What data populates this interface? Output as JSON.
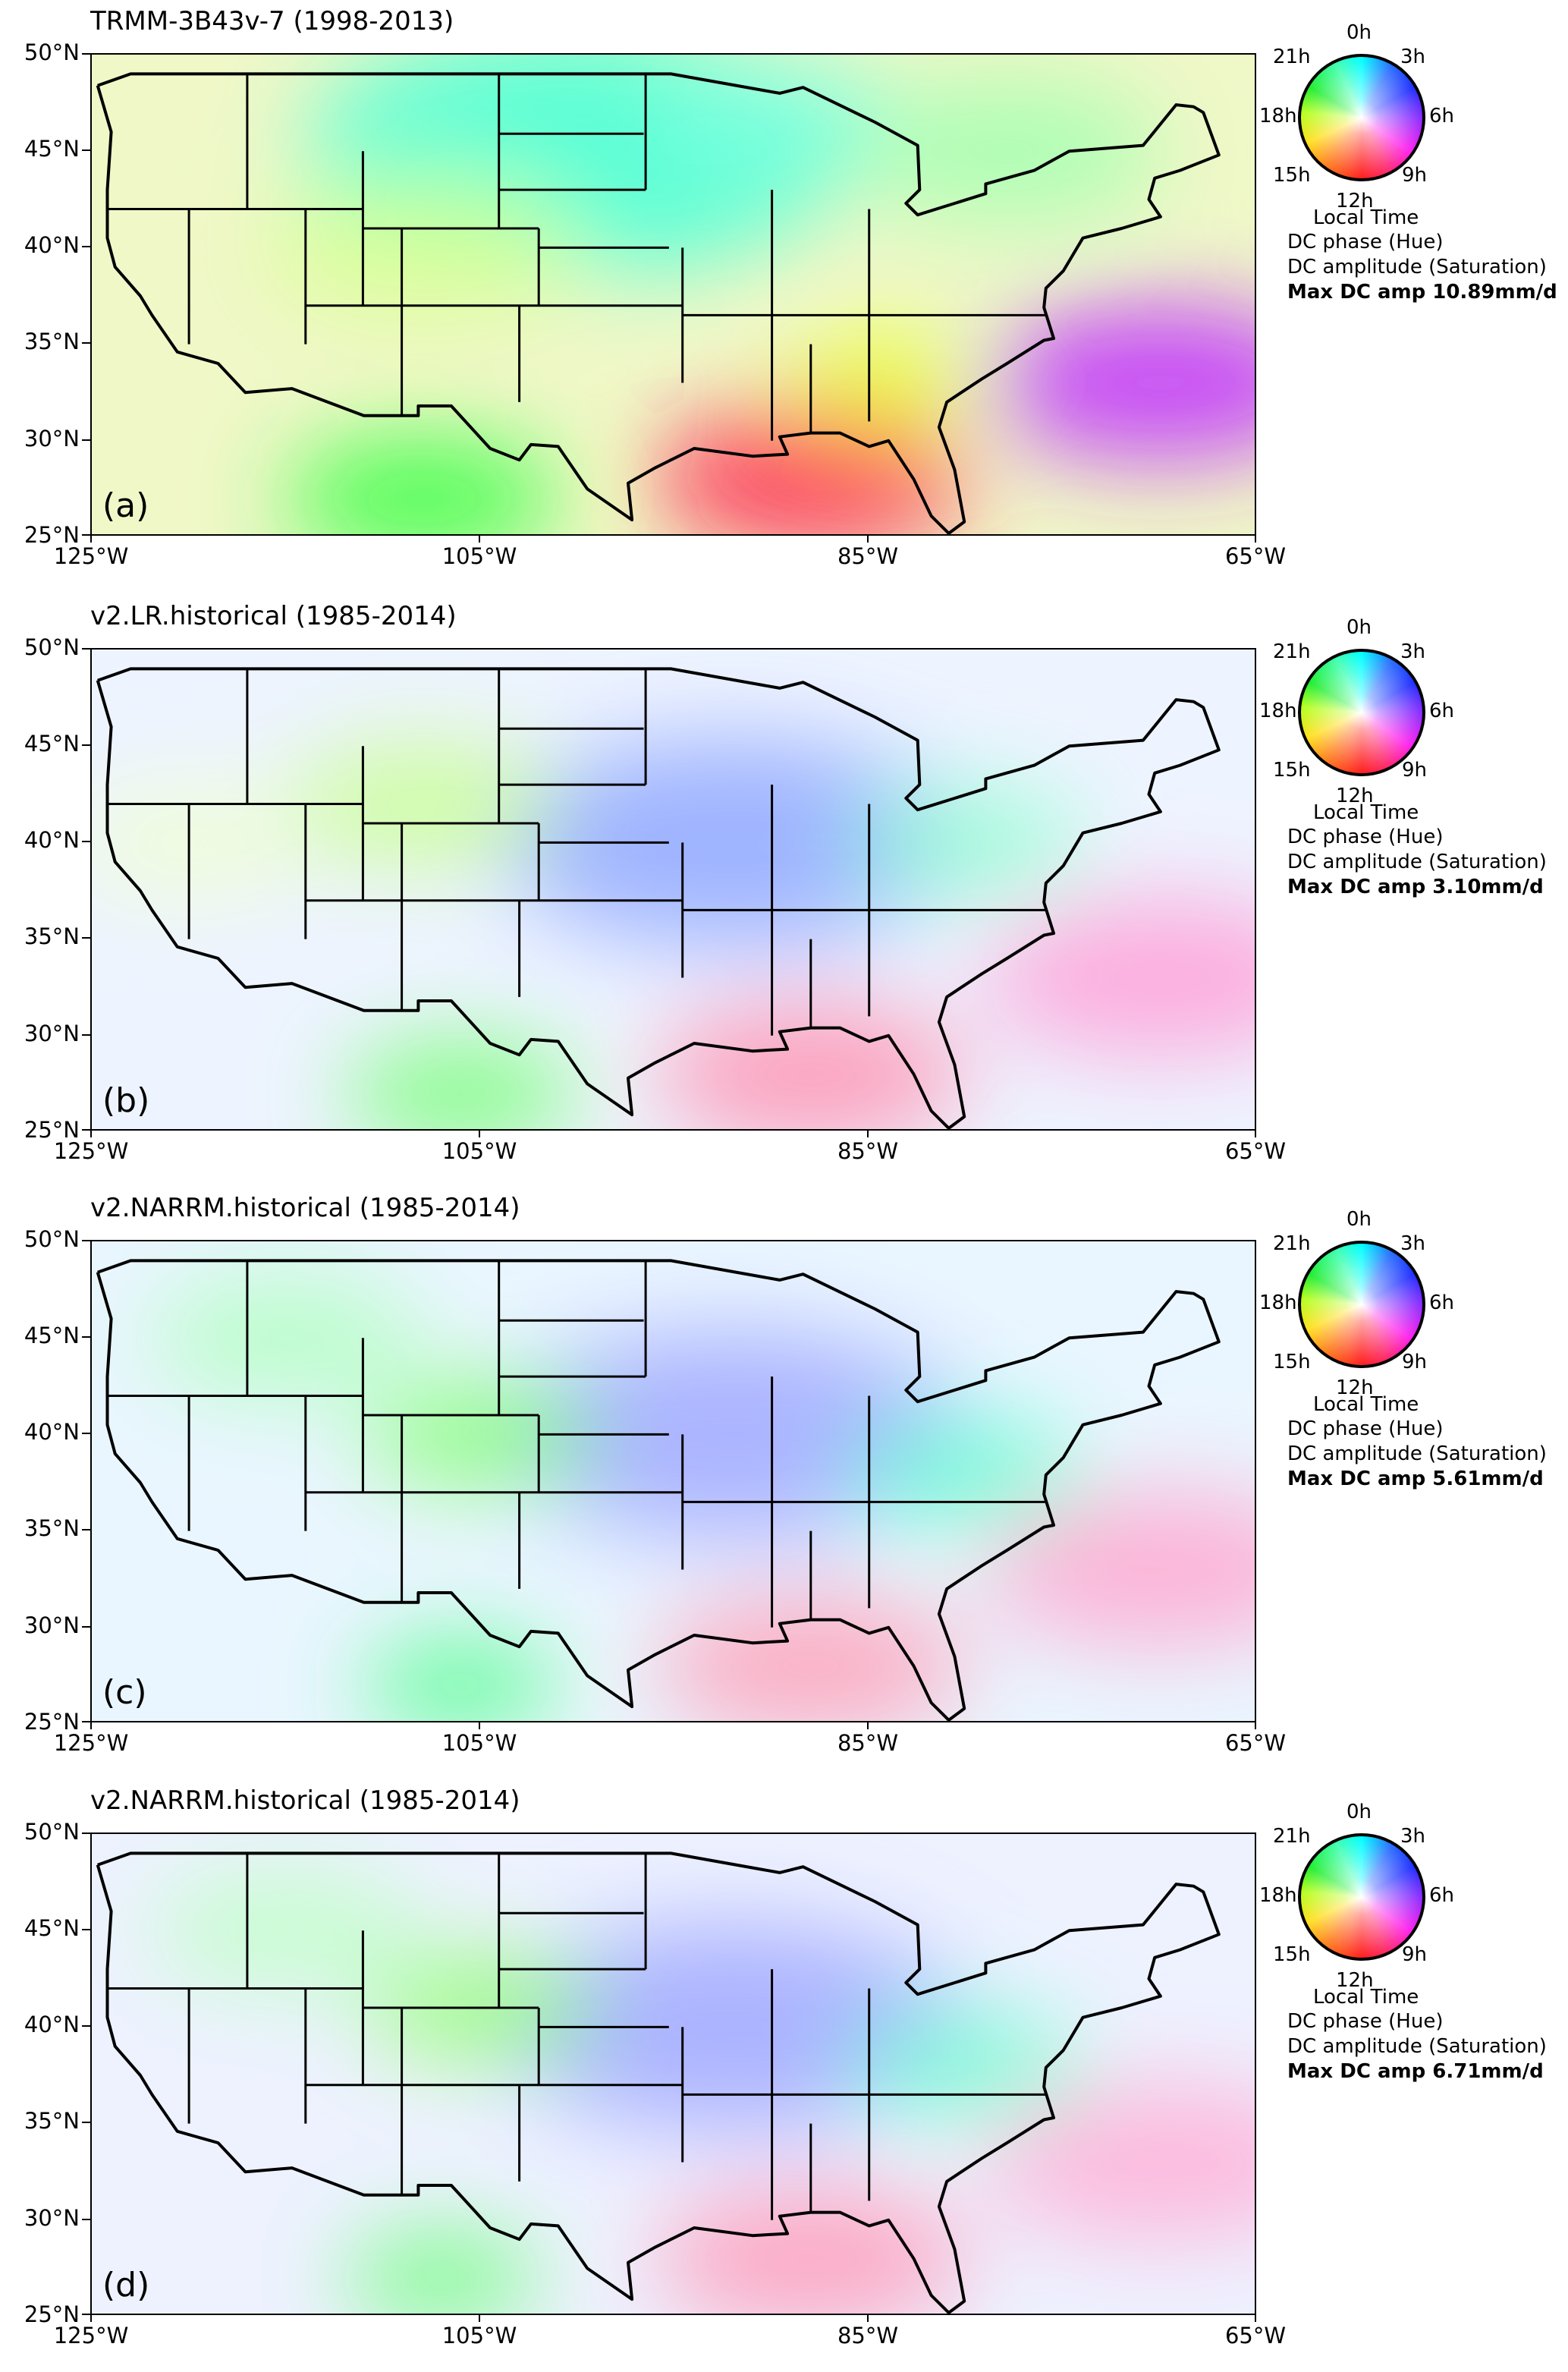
{
  "panels": [
    {
      "title": "TRMM-3B43v-7 (1998-2013)",
      "label": "(a)",
      "max_amp": "Max DC amp 10.89mm/d"
    },
    {
      "title": "v2.LR.historical (1985-2014)",
      "label": "(b)",
      "max_amp": "Max DC amp 3.10mm/d"
    },
    {
      "title": "v2.NARRM.historical (1985-2014)",
      "label": "(c)",
      "max_amp": "Max DC amp 5.61mm/d"
    },
    {
      "title": "v2.NARRM.historical (1985-2014)",
      "label": "(d)",
      "max_amp": "Max DC amp 6.71mm/d"
    }
  ],
  "lat_ticks": [
    "50°N",
    "45°N",
    "40°N",
    "35°N",
    "30°N",
    "25°N"
  ],
  "lon_ticks": [
    "125°W",
    "105°W",
    "85°W",
    "65°W"
  ],
  "legend": {
    "hours": {
      "h0": "0h",
      "h3": "3h",
      "h6": "6h",
      "h9": "9h",
      "h12": "12h",
      "h15": "15h",
      "h18": "18h",
      "h21": "21h"
    },
    "axis_label": "Local Time",
    "phase": "DC phase (Hue)",
    "amplitude": "DC amplitude (Saturation)"
  },
  "extent": {
    "lon": [
      -125,
      -65
    ],
    "lat": [
      25,
      50
    ]
  }
}
